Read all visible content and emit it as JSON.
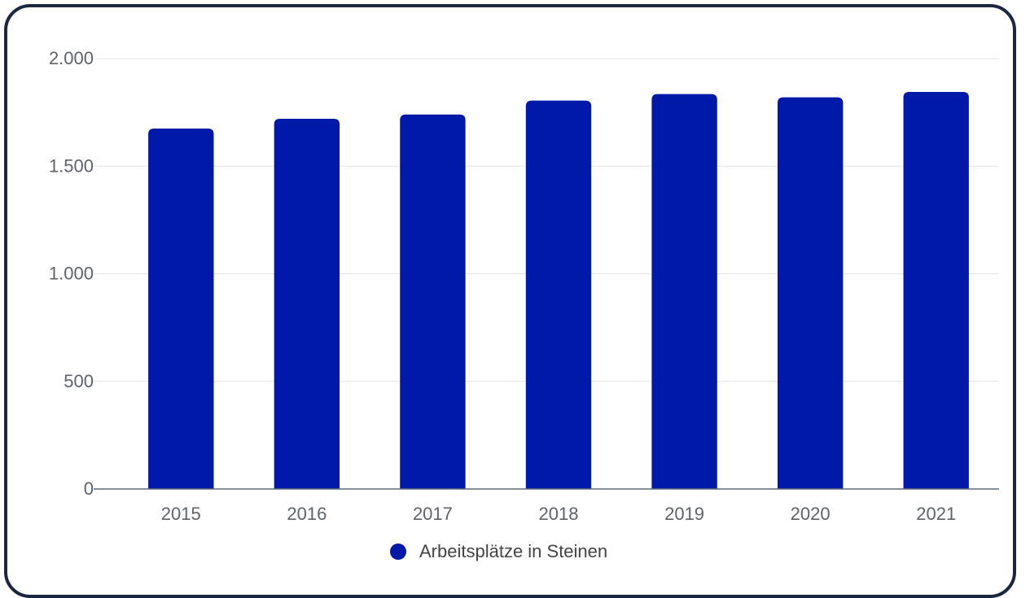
{
  "chart_data": {
    "type": "bar",
    "categories": [
      "2015",
      "2016",
      "2017",
      "2018",
      "2019",
      "2020",
      "2021"
    ],
    "series": [
      {
        "name": "Arbeitsplätze in Steinen",
        "color": "#0019a8",
        "values": [
          1675,
          1720,
          1740,
          1805,
          1835,
          1820,
          1845
        ]
      }
    ],
    "yticks": [
      {
        "value": 0,
        "label": "0"
      },
      {
        "value": 500,
        "label": "500"
      },
      {
        "value": 1000,
        "label": "1.000"
      },
      {
        "value": 1500,
        "label": "1.500"
      },
      {
        "value": 2000,
        "label": "2.000"
      }
    ],
    "ylim": [
      0,
      2000
    ],
    "grid": true,
    "legend_position": "bottom-center",
    "colors": {
      "bar": "#0019a8",
      "gridline": "#e5e5e5",
      "axis": "#5f6b7a",
      "frame": "#1b2640",
      "text": "#5f6368"
    }
  }
}
